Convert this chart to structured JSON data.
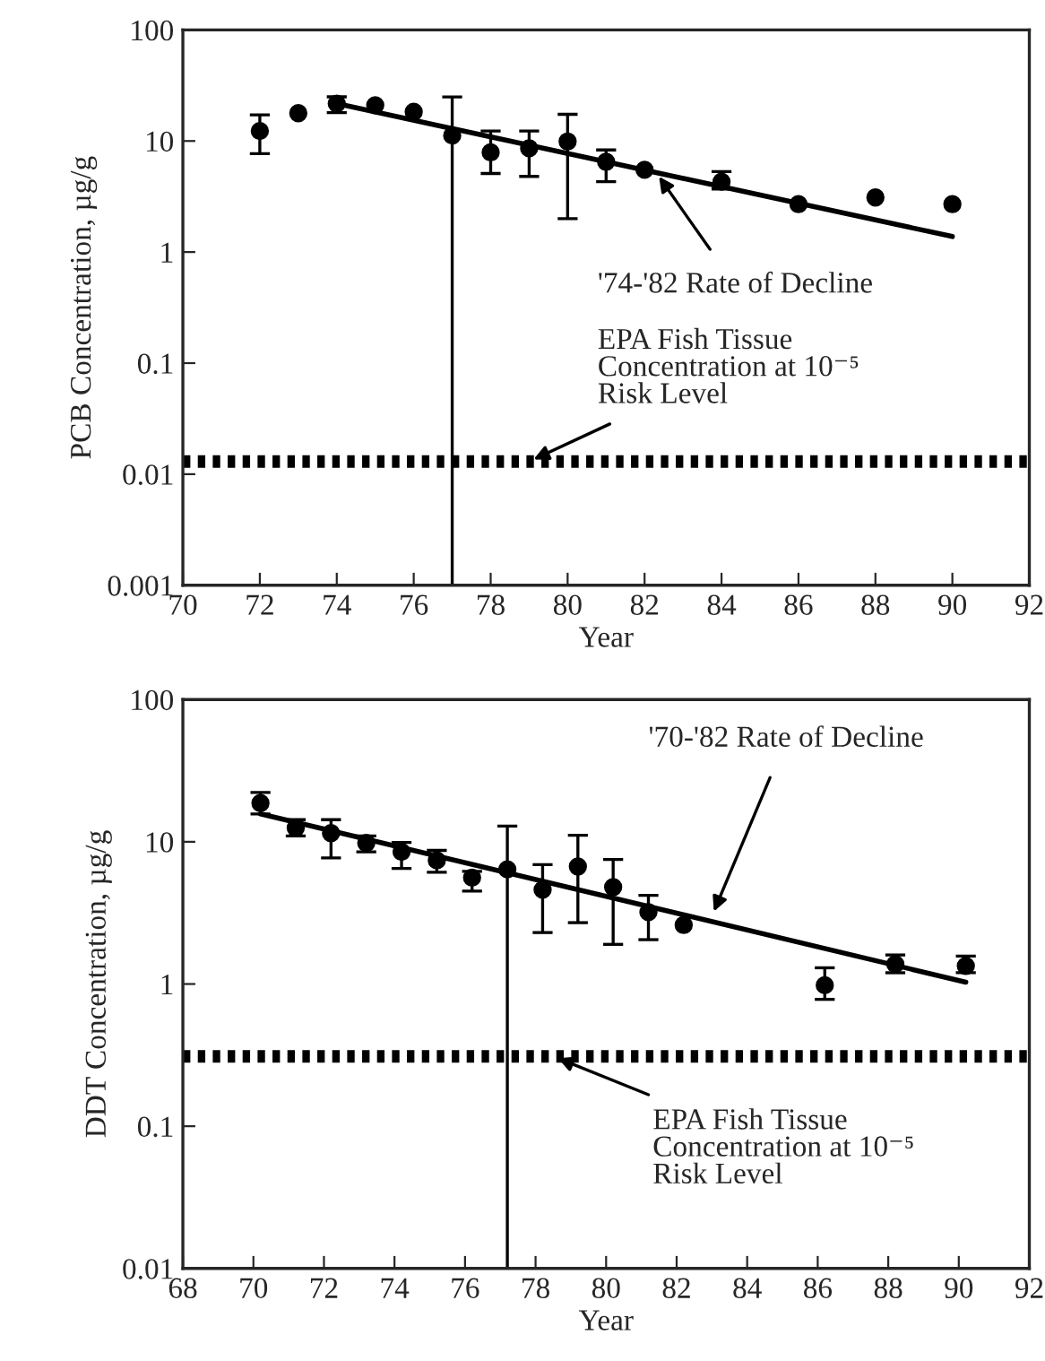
{
  "chart_data": [
    {
      "type": "scatter",
      "xlabel": "Year",
      "ylabel": "PCB Concentration, µg/g",
      "log": "y",
      "xlim": [
        70,
        92
      ],
      "xticks": [
        70,
        72,
        74,
        76,
        78,
        80,
        82,
        84,
        86,
        88,
        90,
        92
      ],
      "ylim": [
        0.001,
        100
      ],
      "yticks": [
        0.001,
        0.01,
        0.1,
        1,
        10,
        100
      ],
      "grid": false,
      "marker": "circle",
      "series": [
        {
          "color": "#000000",
          "x": [
            72,
            73,
            74,
            75,
            76,
            77,
            78,
            79,
            80,
            81,
            82,
            84,
            86,
            88,
            90
          ],
          "values": [
            12.3,
            17.8,
            21.7,
            21,
            18.3,
            11.2,
            7.9,
            8.6,
            9.9,
            6.5,
            5.5,
            4.3,
            2.7,
            3.1,
            2.7
          ],
          "errors": [
            [
              7.7,
              17.2
            ],
            null,
            [
              18,
              25
            ],
            null,
            null,
            [
              0.001,
              24.9
            ],
            [
              5.1,
              12.3
            ],
            [
              4.8,
              12.3
            ],
            [
              2.0,
              17.4
            ],
            [
              4.3,
              8.3
            ],
            null,
            [
              3.7,
              5.3
            ],
            null,
            null,
            null
          ]
        },
        {
          "type": "line",
          "marker": "none",
          "color": "#000000",
          "x": [
            74,
            90
          ],
          "values": [
            21.7,
            1.38
          ]
        }
      ],
      "ref_lines": [
        {
          "axis": "y",
          "value": 0.013,
          "line_style": "dotted",
          "color": "#000000"
        }
      ],
      "annotations": [
        {
          "text": "'74-'82 Rate of Decline",
          "x": 82.3,
          "y": 5.2
        },
        {
          "text": "EPA Fish Tissue\nConcentration at 10⁻⁵\nRisk Level",
          "x": 79,
          "y": 0.013
        }
      ]
    },
    {
      "type": "scatter",
      "xlabel": "Year",
      "ylabel": "DDT Concentration, µg/g",
      "log": "y",
      "xlim": [
        68,
        92
      ],
      "xticks": [
        68,
        70,
        72,
        74,
        76,
        78,
        80,
        82,
        84,
        86,
        88,
        90,
        92
      ],
      "ylim": [
        0.01,
        100
      ],
      "yticks": [
        0.01,
        0.1,
        1,
        10,
        100
      ],
      "grid": false,
      "marker": "circle",
      "series": [
        {
          "color": "#000000",
          "x": [
            70.2,
            71.2,
            72.2,
            73.2,
            74.2,
            75.2,
            76.2,
            77.2,
            78.2,
            79.2,
            80.2,
            81.2,
            82.2,
            86.2,
            88.2,
            90.2
          ],
          "values": [
            18.7,
            12.5,
            11.5,
            9.8,
            8.5,
            7.4,
            5.6,
            6.4,
            4.6,
            6.7,
            4.8,
            3.2,
            2.6,
            0.98,
            1.38,
            1.34
          ],
          "errors": [
            [
              15.7,
              22.2
            ],
            [
              11,
              14.3
            ],
            [
              7.7,
              14.3
            ],
            [
              8.5,
              11
            ],
            [
              6.5,
              9.9
            ],
            [
              6.1,
              8.7
            ],
            [
              4.5,
              6.2
            ],
            [
              0.01,
              12.9
            ],
            [
              2.3,
              6.9
            ],
            [
              2.7,
              11.1
            ],
            [
              1.9,
              7.5
            ],
            [
              2.05,
              4.2
            ],
            null,
            [
              0.78,
              1.3
            ],
            [
              1.2,
              1.6
            ],
            [
              1.2,
              1.57
            ]
          ]
        },
        {
          "type": "line",
          "marker": "none",
          "color": "#000000",
          "x": [
            70.2,
            90.2
          ],
          "values": [
            15.7,
            1.03
          ]
        }
      ],
      "ref_lines": [
        {
          "axis": "y",
          "value": 0.31,
          "line_style": "dotted",
          "color": "#000000"
        }
      ],
      "annotations": [
        {
          "text": "'70-'82 Rate of Decline",
          "x": 83,
          "y": 3.0
        },
        {
          "text": "EPA Fish Tissue\nConcentration at 10⁻⁵\nRisk Level",
          "x": 78.5,
          "y": 0.31
        }
      ]
    }
  ]
}
